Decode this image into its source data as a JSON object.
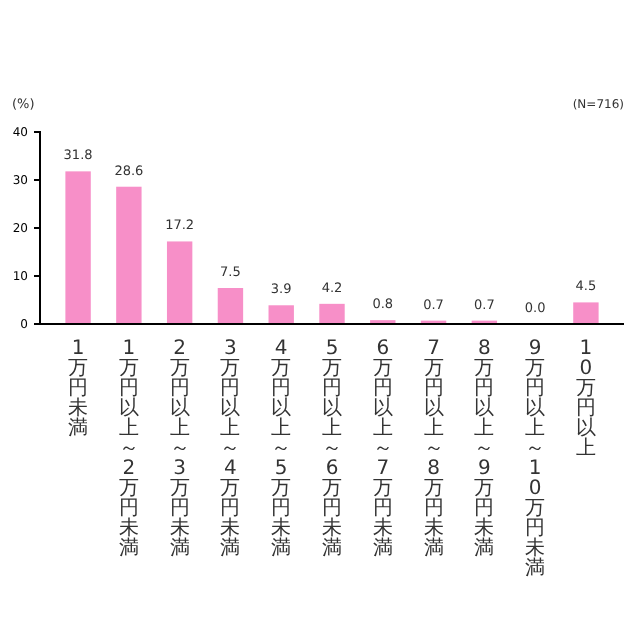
{
  "chart_data": {
    "type": "bar",
    "ylabel": "(%)",
    "annotations": [
      "(N=716)"
    ],
    "categories": [
      "1万円未満",
      "1万円以上～2万円未満",
      "2万円以上～3万円未満",
      "3万円以上～4万円未満",
      "4万円以上～5万円未満",
      "5万円以上～6万円未満",
      "6万円以上～7万円未満",
      "7万円以上～8万円未満",
      "8万円以上～9万円未満",
      "9万円以上～10万円未満",
      "10万円以上"
    ],
    "values": [
      31.8,
      28.6,
      17.2,
      7.5,
      3.9,
      4.2,
      0.8,
      0.7,
      0.7,
      0.0,
      4.5
    ],
    "value_labels": [
      "31.8",
      "28.6",
      "17.2",
      "7.5",
      "3.9",
      "4.2",
      "0.8",
      "0.7",
      "0.7",
      "0.0",
      "4.5"
    ],
    "color": "#f78fc8",
    "ylim": [
      0,
      40
    ],
    "yticks": [
      0,
      10,
      20,
      30,
      40
    ],
    "grid": false
  }
}
